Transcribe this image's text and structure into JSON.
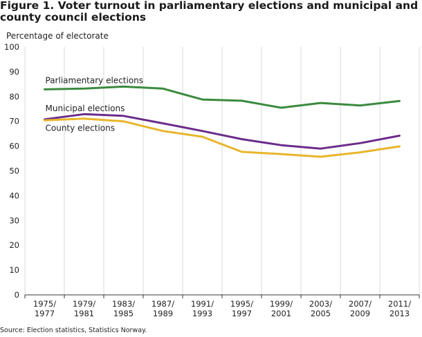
{
  "figure": {
    "title": "Figure 1. Voter turnout in parliamentary elections and municipal and county council elections",
    "source": "Source: Election statistics, Statistics Norway."
  },
  "chart_data": {
    "type": "line",
    "title": "Figure 1. Voter turnout in parliamentary elections and municipal and county council elections",
    "xlabel": "",
    "ylabel": "Percentage of electorate",
    "ylim": [
      0,
      100
    ],
    "yticks": [
      0,
      10,
      20,
      30,
      40,
      50,
      60,
      70,
      80,
      90,
      100
    ],
    "grid": "vertical",
    "categories": [
      [
        "1975/",
        "1977"
      ],
      [
        "1979/",
        "1981"
      ],
      [
        "1983/",
        "1985"
      ],
      [
        "1987/",
        "1989"
      ],
      [
        "1991/",
        "1993"
      ],
      [
        "1995/",
        "1997"
      ],
      [
        "1999/",
        "2001"
      ],
      [
        "2003/",
        "2005"
      ],
      [
        "2007/",
        "2009"
      ],
      [
        "2011/",
        "2013"
      ]
    ],
    "series": [
      {
        "name": "Parliamentary elections",
        "color": "#3a8a3e",
        "values": [
          82.9,
          83.2,
          84.0,
          83.2,
          78.8,
          78.3,
          75.5,
          77.4,
          76.4,
          78.2
        ]
      },
      {
        "name": "Municipal elections",
        "color": "#6a2c8a",
        "values": [
          70.8,
          72.9,
          72.2,
          69.2,
          66.1,
          62.8,
          60.4,
          59.0,
          61.2,
          64.2
        ]
      },
      {
        "name": "County elections",
        "color": "#e8b52a",
        "values": [
          70.4,
          71.1,
          70.0,
          66.1,
          63.8,
          57.7,
          56.8,
          55.7,
          57.5,
          59.9
        ]
      }
    ],
    "source": "Source: Election statistics, Statistics Norway."
  }
}
